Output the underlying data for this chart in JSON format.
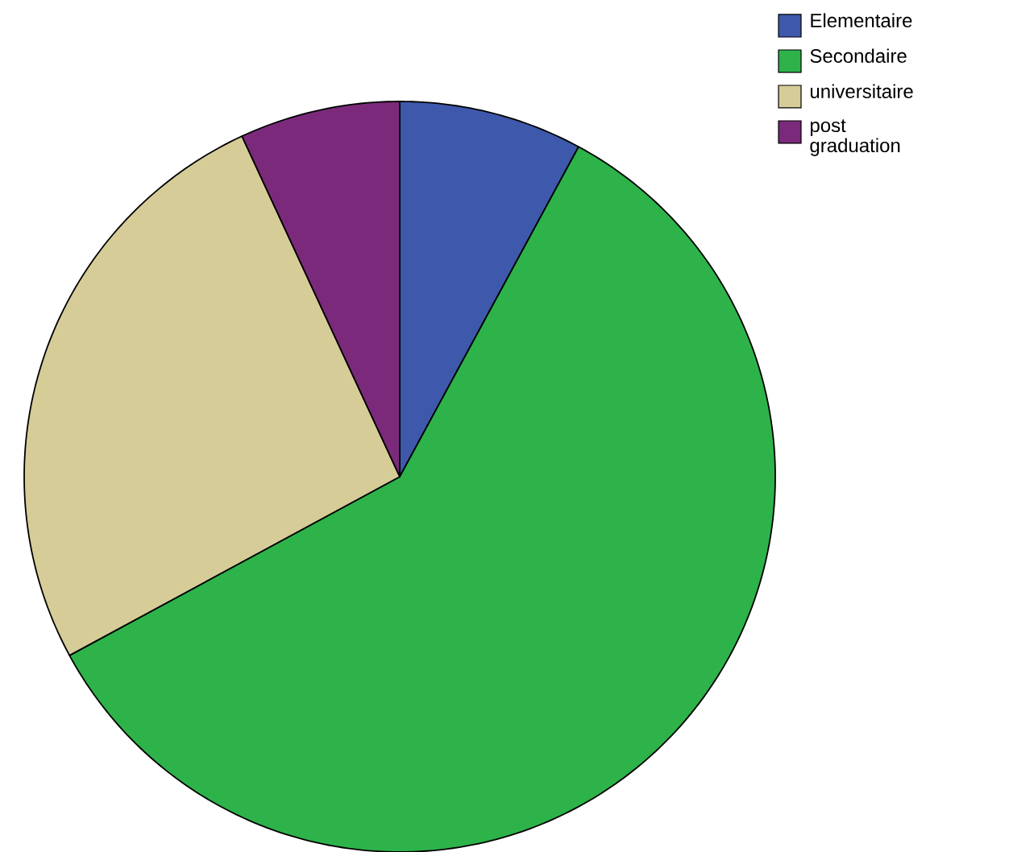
{
  "chart_data": {
    "type": "pie",
    "categories": [
      "Elementaire",
      "Secondaire",
      "universitaire",
      "post graduation"
    ],
    "values": [
      7.9,
      59.2,
      26.0,
      6.9
    ],
    "colors": [
      "#3e58ac",
      "#2db34a",
      "#d5cc98",
      "#7b2a7b"
    ],
    "legend": "top right"
  }
}
